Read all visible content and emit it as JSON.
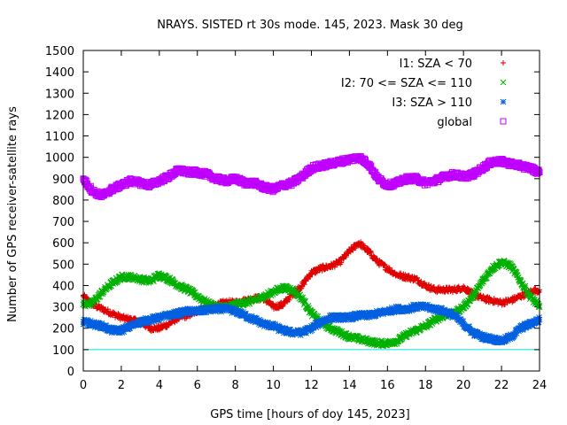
{
  "chart_data": {
    "type": "scatter",
    "title": "NRAYS. SISTED rt 30s mode. 145, 2023. Mask 30 deg",
    "xlabel": "GPS time [hours of doy 145, 2023]",
    "ylabel": "Number of GPS receiver-satellite rays",
    "xlim": [
      0,
      24
    ],
    "ylim": [
      0,
      1500
    ],
    "xticks": [
      0,
      2,
      4,
      6,
      8,
      10,
      12,
      14,
      16,
      18,
      20,
      22,
      24
    ],
    "yticks": [
      0,
      100,
      200,
      300,
      400,
      500,
      600,
      700,
      800,
      900,
      1000,
      1100,
      1200,
      1300,
      1400,
      1500
    ],
    "reference_line": {
      "y": 100,
      "color": "#00e0e0"
    },
    "legend_position": "top-right",
    "series": [
      {
        "name": "I1: SZA < 70",
        "marker": "plus",
        "color": "#e00000",
        "x": [
          0,
          0.5,
          1,
          1.5,
          2,
          2.5,
          3,
          3.5,
          4,
          4.5,
          5,
          5.5,
          6,
          6.5,
          7,
          7.5,
          8,
          8.5,
          9,
          9.5,
          10,
          10.5,
          11,
          11.5,
          12,
          12.5,
          13,
          13.5,
          14,
          14.5,
          15,
          15.5,
          16,
          16.5,
          17,
          17.5,
          18,
          18.5,
          19,
          19.5,
          20,
          20.5,
          21,
          21.5,
          22,
          22.5,
          23,
          23.5,
          24
        ],
        "values": [
          350,
          310,
          290,
          270,
          250,
          240,
          230,
          200,
          200,
          220,
          250,
          260,
          280,
          300,
          310,
          320,
          320,
          330,
          340,
          340,
          300,
          310,
          360,
          400,
          460,
          480,
          490,
          510,
          560,
          600,
          560,
          510,
          480,
          450,
          440,
          430,
          400,
          380,
          380,
          380,
          390,
          360,
          340,
          330,
          320,
          330,
          350,
          370,
          380
        ]
      },
      {
        "name": "I2: 70 <= SZA <= 110",
        "marker": "cross",
        "color": "#00b000",
        "x": [
          0,
          0.5,
          1,
          1.5,
          2,
          2.5,
          3,
          3.5,
          4,
          4.5,
          5,
          5.5,
          6,
          6.5,
          7,
          7.5,
          8,
          8.5,
          9,
          9.5,
          10,
          10.5,
          11,
          11.5,
          12,
          12.5,
          13,
          13.5,
          14,
          14.5,
          15,
          15.5,
          16,
          16.5,
          17,
          17.5,
          18,
          18.5,
          19,
          19.5,
          20,
          20.5,
          21,
          21.5,
          22,
          22.5,
          23,
          23.5,
          24
        ],
        "values": [
          310,
          320,
          370,
          410,
          440,
          440,
          430,
          420,
          450,
          430,
          400,
          380,
          350,
          320,
          300,
          300,
          310,
          320,
          330,
          350,
          370,
          390,
          380,
          340,
          270,
          230,
          200,
          180,
          160,
          150,
          140,
          130,
          130,
          140,
          170,
          190,
          210,
          240,
          260,
          270,
          300,
          350,
          420,
          480,
          510,
          490,
          420,
          350,
          300
        ]
      },
      {
        "name": "I3: SZA > 110",
        "marker": "star",
        "color": "#0060e0",
        "x": [
          0,
          0.5,
          1,
          1.5,
          2,
          2.5,
          3,
          3.5,
          4,
          4.5,
          5,
          5.5,
          6,
          6.5,
          7,
          7.5,
          8,
          8.5,
          9,
          9.5,
          10,
          10.5,
          11,
          11.5,
          12,
          12.5,
          13,
          13.5,
          14,
          14.5,
          15,
          15.5,
          16,
          16.5,
          17,
          17.5,
          18,
          18.5,
          19,
          19.5,
          20,
          20.5,
          21,
          21.5,
          22,
          22.5,
          23,
          23.5,
          24
        ],
        "values": [
          230,
          220,
          210,
          190,
          190,
          210,
          230,
          240,
          250,
          260,
          270,
          280,
          280,
          285,
          290,
          290,
          280,
          260,
          240,
          220,
          210,
          190,
          180,
          180,
          200,
          230,
          250,
          250,
          250,
          260,
          260,
          270,
          280,
          290,
          290,
          300,
          300,
          290,
          280,
          260,
          220,
          180,
          160,
          150,
          140,
          160,
          200,
          220,
          240
        ]
      },
      {
        "name": "global",
        "marker": "square",
        "color": "#c000ff",
        "x": [
          0,
          0.5,
          1,
          1.5,
          2,
          2.5,
          3,
          3.5,
          4,
          4.5,
          5,
          5.5,
          6,
          6.5,
          7,
          7.5,
          8,
          8.5,
          9,
          9.5,
          10,
          10.5,
          11,
          11.5,
          12,
          12.5,
          13,
          13.5,
          14,
          14.5,
          15,
          15.5,
          16,
          16.5,
          17,
          17.5,
          18,
          18.5,
          19,
          19.5,
          20,
          20.5,
          21,
          21.5,
          22,
          22.5,
          23,
          23.5,
          24
        ],
        "values": [
          900,
          840,
          820,
          850,
          870,
          890,
          880,
          870,
          890,
          910,
          940,
          930,
          930,
          920,
          900,
          890,
          900,
          880,
          880,
          860,
          850,
          870,
          880,
          910,
          950,
          960,
          970,
          980,
          990,
          1000,
          970,
          900,
          870,
          880,
          900,
          900,
          880,
          890,
          910,
          920,
          910,
          920,
          950,
          980,
          980,
          970,
          960,
          950,
          930
        ]
      }
    ]
  }
}
